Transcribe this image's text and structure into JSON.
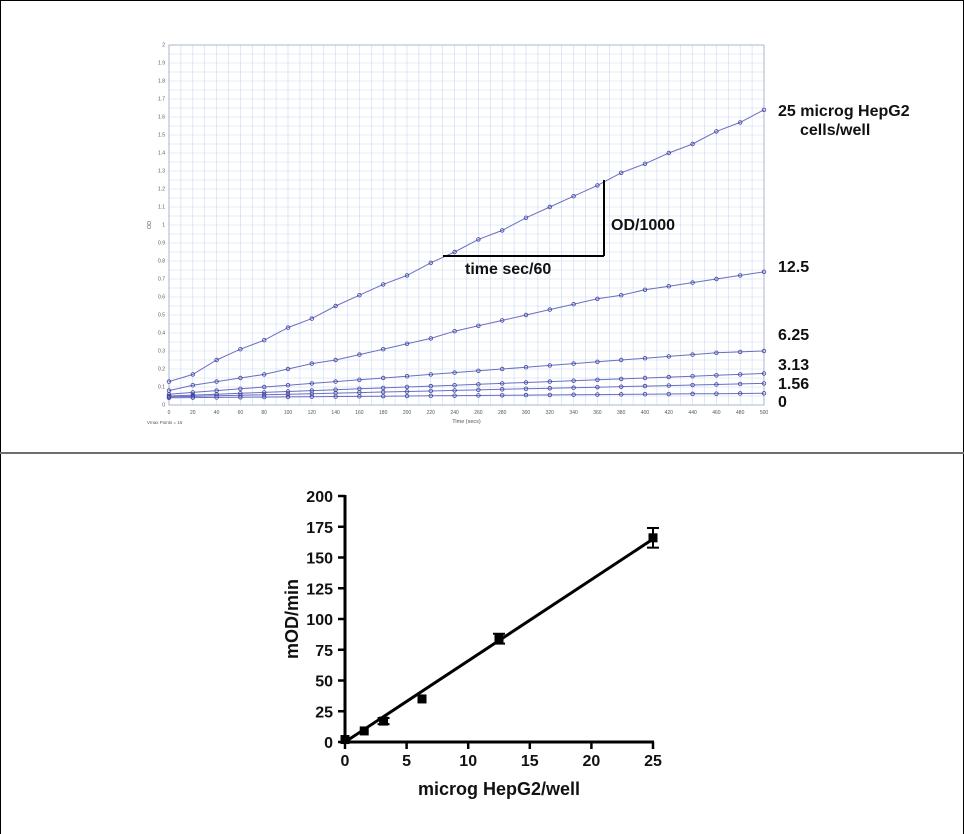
{
  "chart_data": [
    {
      "type": "line",
      "xlabel": "Time (secs)",
      "ylabel": "OD",
      "footer": "Vmax Points = 16",
      "xlim": [
        0,
        500
      ],
      "ylim": [
        0,
        2
      ],
      "xticks": [
        "0",
        "20",
        "40",
        "60",
        "80",
        "100",
        "120",
        "140",
        "160",
        "180",
        "200",
        "220",
        "240",
        "260",
        "280",
        "300",
        "320",
        "340",
        "360",
        "380",
        "400",
        "420",
        "440",
        "460",
        "480",
        "500"
      ],
      "yticks": [
        "0",
        "0.1",
        "0.2",
        "0.3",
        "0.4",
        "0.5",
        "0.6",
        "0.7",
        "0.8",
        "0.9",
        "1",
        "1.1",
        "1.2",
        "1.3",
        "1.4",
        "1.5",
        "1.6",
        "1.7",
        "1.8",
        "1.9",
        "2"
      ],
      "x": [
        0,
        20,
        40,
        60,
        80,
        100,
        120,
        140,
        160,
        180,
        200,
        220,
        240,
        260,
        280,
        300,
        320,
        340,
        360,
        380,
        400,
        420,
        440,
        460,
        480,
        500
      ],
      "series": [
        {
          "name": "25 microg HepG2 cells/well",
          "values": [
            0.13,
            0.17,
            0.25,
            0.31,
            0.36,
            0.43,
            0.48,
            0.55,
            0.61,
            0.67,
            0.72,
            0.79,
            0.85,
            0.92,
            0.97,
            1.04,
            1.1,
            1.16,
            1.22,
            1.29,
            1.34,
            1.4,
            1.45,
            1.52,
            1.57,
            1.64
          ]
        },
        {
          "name": "12.5",
          "values": [
            0.08,
            0.11,
            0.13,
            0.15,
            0.17,
            0.2,
            0.23,
            0.25,
            0.28,
            0.31,
            0.34,
            0.37,
            0.41,
            0.44,
            0.47,
            0.5,
            0.53,
            0.56,
            0.59,
            0.61,
            0.64,
            0.66,
            0.68,
            0.7,
            0.72,
            0.74
          ]
        },
        {
          "name": "6.25",
          "values": [
            0.06,
            0.07,
            0.08,
            0.09,
            0.1,
            0.11,
            0.12,
            0.13,
            0.14,
            0.15,
            0.16,
            0.17,
            0.18,
            0.19,
            0.2,
            0.21,
            0.22,
            0.23,
            0.24,
            0.25,
            0.26,
            0.27,
            0.28,
            0.29,
            0.295,
            0.3
          ]
        },
        {
          "name": "3.13",
          "values": [
            0.05,
            0.055,
            0.06,
            0.065,
            0.07,
            0.075,
            0.08,
            0.085,
            0.09,
            0.095,
            0.1,
            0.105,
            0.11,
            0.115,
            0.12,
            0.125,
            0.13,
            0.135,
            0.14,
            0.145,
            0.15,
            0.155,
            0.16,
            0.165,
            0.17,
            0.175
          ]
        },
        {
          "name": "1.56",
          "values": [
            0.045,
            0.048,
            0.051,
            0.054,
            0.057,
            0.06,
            0.063,
            0.066,
            0.069,
            0.072,
            0.075,
            0.078,
            0.081,
            0.084,
            0.087,
            0.09,
            0.093,
            0.096,
            0.099,
            0.102,
            0.105,
            0.108,
            0.111,
            0.114,
            0.117,
            0.12
          ]
        },
        {
          "name": "0",
          "values": [
            0.04,
            0.041,
            0.042,
            0.043,
            0.044,
            0.045,
            0.046,
            0.047,
            0.048,
            0.049,
            0.05,
            0.051,
            0.052,
            0.053,
            0.054,
            0.055,
            0.056,
            0.057,
            0.058,
            0.059,
            0.06,
            0.061,
            0.062,
            0.063,
            0.064,
            0.065
          ]
        }
      ],
      "annotations": {
        "vertical": "OD/1000",
        "horizontal": "time sec/60"
      },
      "grid": true,
      "line_color": "#6a6fc2",
      "grid_color": "#c8d8f2"
    },
    {
      "type": "scatter",
      "xlabel": "microg HepG2/well",
      "ylabel": "mOD/min",
      "xlim": [
        0,
        25
      ],
      "ylim": [
        0,
        200
      ],
      "xticks": [
        "0",
        "5",
        "10",
        "15",
        "20",
        "25"
      ],
      "yticks": [
        "0",
        "25",
        "50",
        "75",
        "100",
        "125",
        "150",
        "175",
        "200"
      ],
      "points": [
        {
          "x": 0,
          "y": 2,
          "err": 1.5
        },
        {
          "x": 1.56,
          "y": 9,
          "err": 1.5
        },
        {
          "x": 3.13,
          "y": 17,
          "err": 2.5
        },
        {
          "x": 6.25,
          "y": 35,
          "err": 2
        },
        {
          "x": 12.5,
          "y": 84,
          "err": 4
        },
        {
          "x": 25,
          "y": 166,
          "err": 8
        }
      ],
      "fit_line": {
        "x": [
          0,
          25
        ],
        "y": [
          0,
          165
        ]
      },
      "grid": false
    }
  ]
}
